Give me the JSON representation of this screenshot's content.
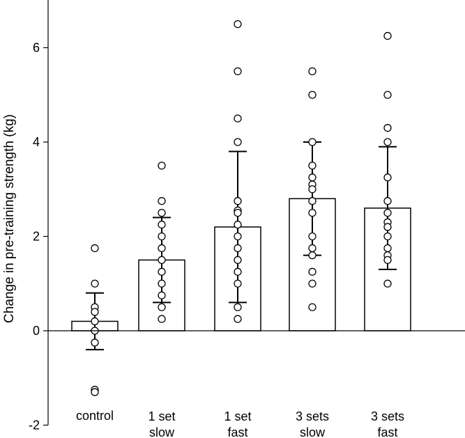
{
  "chart_data": {
    "type": "bar",
    "title": "",
    "xlabel": "",
    "ylabel": "Change in pre-training strength (kg)",
    "ylim": [
      -2,
      7
    ],
    "yticks": [
      -2,
      0,
      2,
      4,
      6
    ],
    "grid": false,
    "categories": [
      {
        "line1": "control",
        "line2": ""
      },
      {
        "line1": "1 set",
        "line2": "slow"
      },
      {
        "line1": "1 set",
        "line2": "fast"
      },
      {
        "line1": "3 sets",
        "line2": "slow"
      },
      {
        "line1": "3 sets",
        "line2": "fast"
      }
    ],
    "values": [
      0.2,
      1.5,
      2.2,
      2.8,
      2.6
    ],
    "error_bars": [
      {
        "low": -0.4,
        "high": 0.8
      },
      {
        "low": 0.6,
        "high": 2.4
      },
      {
        "low": 0.6,
        "high": 3.8
      },
      {
        "low": 1.6,
        "high": 4.0
      },
      {
        "low": 1.3,
        "high": 3.9
      }
    ],
    "points": [
      [
        1.75,
        1.0,
        0.5,
        0.4,
        0.2,
        0.0,
        -0.25,
        -1.25,
        -1.3
      ],
      [
        3.5,
        2.75,
        2.5,
        2.25,
        2.0,
        1.75,
        1.5,
        1.25,
        1.0,
        0.75,
        0.5,
        0.25
      ],
      [
        6.5,
        5.5,
        4.5,
        4.0,
        2.75,
        2.55,
        2.5,
        2.25,
        2.0,
        1.75,
        1.5,
        1.25,
        1.0,
        0.5,
        0.25
      ],
      [
        5.5,
        5.0,
        4.0,
        3.5,
        3.25,
        3.1,
        3.0,
        2.75,
        2.5,
        2.0,
        1.75,
        1.6,
        1.25,
        1.0,
        0.5
      ],
      [
        6.25,
        5.0,
        4.3,
        4.0,
        3.25,
        2.75,
        2.5,
        2.3,
        2.2,
        2.0,
        1.75,
        1.6,
        1.5,
        1.0
      ]
    ]
  }
}
